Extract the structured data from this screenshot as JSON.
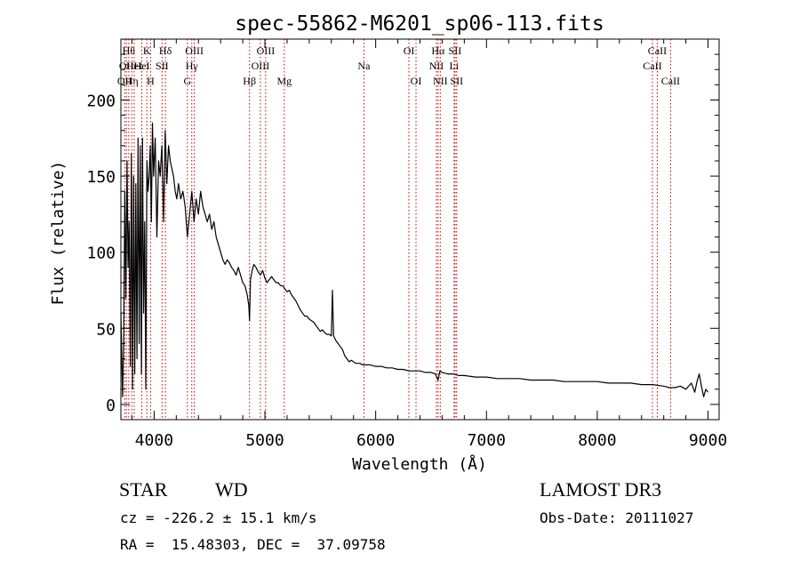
{
  "chart_data": {
    "type": "line",
    "title": "spec-55862-M6201_sp06-113.fits",
    "xlabel": "Wavelength (Å)",
    "ylabel": "Flux (relative)",
    "xlim": [
      3700,
      9100
    ],
    "ylim": [
      -10,
      240
    ],
    "xticks": [
      4000,
      5000,
      6000,
      7000,
      8000,
      9000
    ],
    "xtick_labels": [
      "4000",
      "5000",
      "6000",
      "7000",
      "8000",
      "9000"
    ],
    "yticks": [
      0,
      50,
      100,
      150,
      200
    ],
    "ytick_labels": [
      "0",
      "50",
      "100",
      "150",
      "200"
    ],
    "grid": false,
    "series": [
      {
        "name": "spectrum",
        "x": [
          3700,
          3715,
          3725,
          3735,
          3745,
          3755,
          3765,
          3775,
          3785,
          3795,
          3805,
          3815,
          3825,
          3835,
          3845,
          3855,
          3865,
          3875,
          3885,
          3895,
          3905,
          3915,
          3925,
          3935,
          3945,
          3955,
          3965,
          3975,
          3985,
          3995,
          4010,
          4025,
          4040,
          4055,
          4070,
          4085,
          4100,
          4115,
          4130,
          4145,
          4160,
          4175,
          4190,
          4205,
          4220,
          4240,
          4260,
          4280,
          4300,
          4320,
          4340,
          4360,
          4380,
          4400,
          4420,
          4440,
          4460,
          4480,
          4500,
          4520,
          4540,
          4560,
          4580,
          4600,
          4620,
          4640,
          4660,
          4680,
          4700,
          4720,
          4740,
          4760,
          4780,
          4800,
          4820,
          4840,
          4855,
          4861,
          4870,
          4885,
          4900,
          4920,
          4940,
          4960,
          4980,
          5000,
          5020,
          5040,
          5060,
          5080,
          5100,
          5120,
          5140,
          5160,
          5180,
          5200,
          5220,
          5240,
          5260,
          5280,
          5300,
          5320,
          5340,
          5360,
          5380,
          5400,
          5420,
          5440,
          5460,
          5480,
          5500,
          5520,
          5540,
          5560,
          5580,
          5600,
          5610,
          5620,
          5640,
          5660,
          5680,
          5700,
          5720,
          5740,
          5760,
          5780,
          5800,
          5820,
          5840,
          5860,
          5880,
          5900,
          5950,
          6000,
          6050,
          6100,
          6150,
          6200,
          6250,
          6300,
          6350,
          6400,
          6450,
          6500,
          6540,
          6563,
          6580,
          6600,
          6650,
          6700,
          6750,
          6800,
          6900,
          7000,
          7100,
          7200,
          7300,
          7400,
          7500,
          7600,
          7700,
          7800,
          7900,
          8000,
          8100,
          8200,
          8300,
          8400,
          8500,
          8600,
          8650,
          8700,
          8750,
          8800,
          8850,
          8880,
          8900,
          8920,
          8940,
          8960,
          8980,
          9000
        ],
        "y": [
          60,
          5,
          40,
          140,
          70,
          160,
          90,
          120,
          25,
          165,
          10,
          150,
          20,
          145,
          30,
          175,
          40,
          170,
          20,
          175,
          60,
          120,
          10,
          160,
          140,
          150,
          170,
          120,
          185,
          150,
          175,
          110,
          160,
          150,
          170,
          120,
          180,
          145,
          170,
          160,
          155,
          150,
          140,
          135,
          145,
          135,
          140,
          130,
          110,
          125,
          140,
          120,
          135,
          125,
          140,
          130,
          125,
          120,
          125,
          115,
          120,
          110,
          105,
          100,
          95,
          92,
          95,
          93,
          90,
          88,
          85,
          90,
          85,
          80,
          78,
          72,
          65,
          55,
          82,
          88,
          92,
          90,
          87,
          85,
          88,
          83,
          80,
          82,
          84,
          82,
          80,
          80,
          78,
          78,
          76,
          74,
          75,
          72,
          70,
          68,
          65,
          62,
          60,
          58,
          58,
          56,
          55,
          54,
          52,
          50,
          48,
          49,
          47,
          46,
          46,
          45,
          75,
          45,
          42,
          40,
          38,
          36,
          32,
          30,
          28,
          29,
          28,
          27,
          27,
          27,
          26,
          26,
          26,
          25,
          25,
          24,
          24,
          23,
          23,
          22,
          22,
          22,
          21,
          21,
          20,
          16,
          22,
          21,
          20,
          20,
          19,
          19,
          18,
          18,
          17,
          17,
          17,
          16,
          16,
          16,
          15,
          15,
          15,
          15,
          14,
          14,
          14,
          13,
          13,
          12,
          11,
          11,
          12,
          10,
          14,
          8,
          15,
          20,
          12,
          5,
          10,
          8
        ]
      }
    ],
    "lines": [
      {
        "wavelength": 3734,
        "label": "OII",
        "row": 2
      },
      {
        "wavelength": 3750,
        "label": "OII",
        "row": 1
      },
      {
        "wavelength": 3771,
        "label": "Hθ",
        "row": 0
      },
      {
        "wavelength": 3798,
        "label": "Hη",
        "row": 2
      },
      {
        "wavelength": 3820,
        "label": "HeI",
        "row": 1
      },
      {
        "wavelength": 3889,
        "label": "HeI",
        "row": 1
      },
      {
        "wavelength": 3934,
        "label": "K",
        "row": 0
      },
      {
        "wavelength": 3968,
        "label": "H",
        "row": 2
      },
      {
        "wavelength": 4072,
        "label": "SII",
        "row": 1
      },
      {
        "wavelength": 4102,
        "label": "Hδ",
        "row": 0
      },
      {
        "wavelength": 4300,
        "label": "G",
        "row": 2
      },
      {
        "wavelength": 4340,
        "label": "Hγ",
        "row": 1
      },
      {
        "wavelength": 4363,
        "label": "OIII",
        "row": 0
      },
      {
        "wavelength": 4861,
        "label": "Hβ",
        "row": 2
      },
      {
        "wavelength": 4959,
        "label": "OIII",
        "row": 1
      },
      {
        "wavelength": 5007,
        "label": "OIII",
        "row": 0
      },
      {
        "wavelength": 5175,
        "label": "Mg",
        "row": 2
      },
      {
        "wavelength": 5894,
        "label": "Na",
        "row": 1
      },
      {
        "wavelength": 6300,
        "label": "OI",
        "row": 0
      },
      {
        "wavelength": 6364,
        "label": "OI",
        "row": 2
      },
      {
        "wavelength": 6548,
        "label": "NII",
        "row": 1
      },
      {
        "wavelength": 6563,
        "label": "Hα",
        "row": 0
      },
      {
        "wavelength": 6583,
        "label": "NII",
        "row": 2
      },
      {
        "wavelength": 6708,
        "label": "Li",
        "row": 1
      },
      {
        "wavelength": 6716,
        "label": "SII",
        "row": 0
      },
      {
        "wavelength": 6731,
        "label": "SII",
        "row": 2
      },
      {
        "wavelength": 8498,
        "label": "CaII",
        "row": 1
      },
      {
        "wavelength": 8542,
        "label": "CaII",
        "row": 0
      },
      {
        "wavelength": 8662,
        "label": "CaII",
        "row": 2
      }
    ],
    "colors": {
      "spectrum": "#000000",
      "lines": "#c00000"
    }
  },
  "info": {
    "object_class": "STAR",
    "subclass": "WD",
    "survey": "LAMOST DR3",
    "cz": "cz = -226.2 ± 15.1 km/s",
    "obs_date": "Obs-Date: 20111027",
    "radec": "RA =  15.48303, DEC =  37.09758"
  }
}
